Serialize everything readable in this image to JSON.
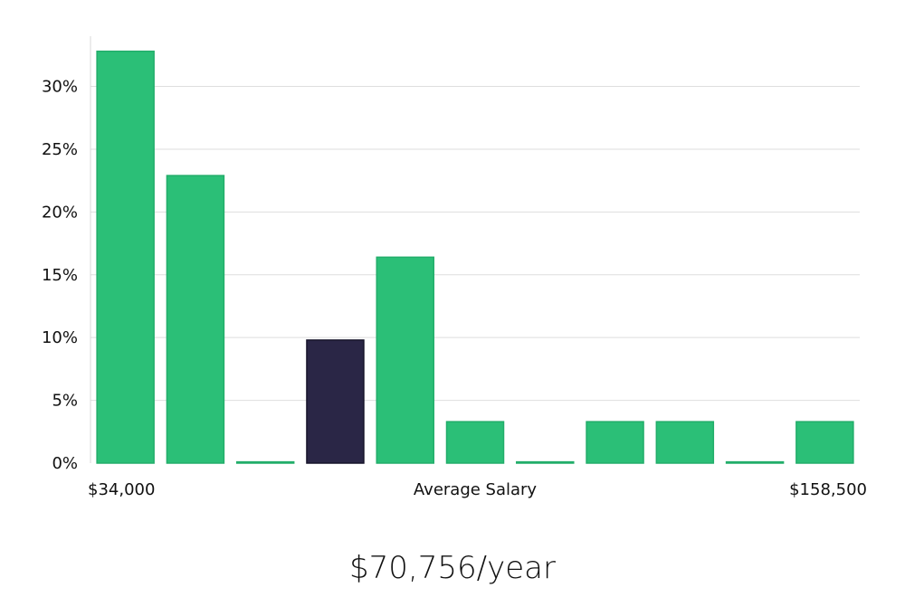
{
  "chart_data": {
    "type": "bar",
    "values": [
      32.8,
      22.9,
      0.1,
      9.8,
      16.4,
      3.3,
      0.1,
      3.3,
      3.3,
      0.1,
      3.3
    ],
    "highlight_index": 3,
    "ylim": [
      0,
      34
    ],
    "yticks": [
      0,
      5,
      10,
      15,
      20,
      25,
      30
    ],
    "ytick_labels": [
      "0%",
      "5%",
      "10%",
      "15%",
      "20%",
      "25%",
      "30%"
    ],
    "x_min_label": "$34,000",
    "x_center_label": "Average Salary",
    "x_max_label": "$158,500",
    "grid": true,
    "colors": {
      "bar": "#2bbf77",
      "bar_edge": "#22ad6a",
      "highlight": "#2a2646",
      "highlight_edge": "#16142a",
      "grid": "#dedede",
      "axis": "#d8d8d8"
    }
  },
  "salary_caption": "$70,756/year"
}
